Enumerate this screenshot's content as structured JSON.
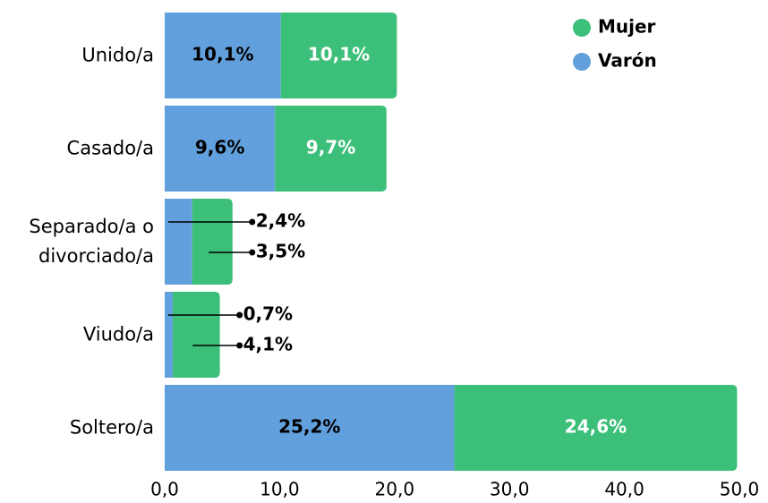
{
  "chart_data": {
    "type": "bar",
    "orientation": "horizontal",
    "stacked": true,
    "categories": [
      "Unido/a",
      "Casado/a",
      "Separado/a o divorciado/a",
      "Viudo/a",
      "Soltero/a"
    ],
    "series": [
      {
        "name": "Varón",
        "color": "#62a0dd",
        "values": [
          10.1,
          9.6,
          2.4,
          0.7,
          25.2
        ],
        "value_labels": [
          "10,1%",
          "9,6%",
          "2,4%",
          "0,7%",
          "25,2%"
        ],
        "label_color": "#000000"
      },
      {
        "name": "Mujer",
        "color": "#3bbf79",
        "values": [
          10.1,
          9.7,
          3.5,
          4.1,
          24.6
        ],
        "value_labels": [
          "10,1%",
          "9,7%",
          "3,5%",
          "4,1%",
          "24,6%"
        ],
        "label_color": "#ffffff"
      }
    ],
    "xlim": [
      0,
      50
    ],
    "xticks": [
      {
        "value": 0,
        "label": "0,0"
      },
      {
        "value": 10,
        "label": "10,0"
      },
      {
        "value": 20,
        "label": "20,0"
      },
      {
        "value": 30,
        "label": "30,0"
      },
      {
        "value": 40,
        "label": "40,0"
      },
      {
        "value": 50,
        "label": "50,0"
      }
    ],
    "legend": "top-right"
  }
}
